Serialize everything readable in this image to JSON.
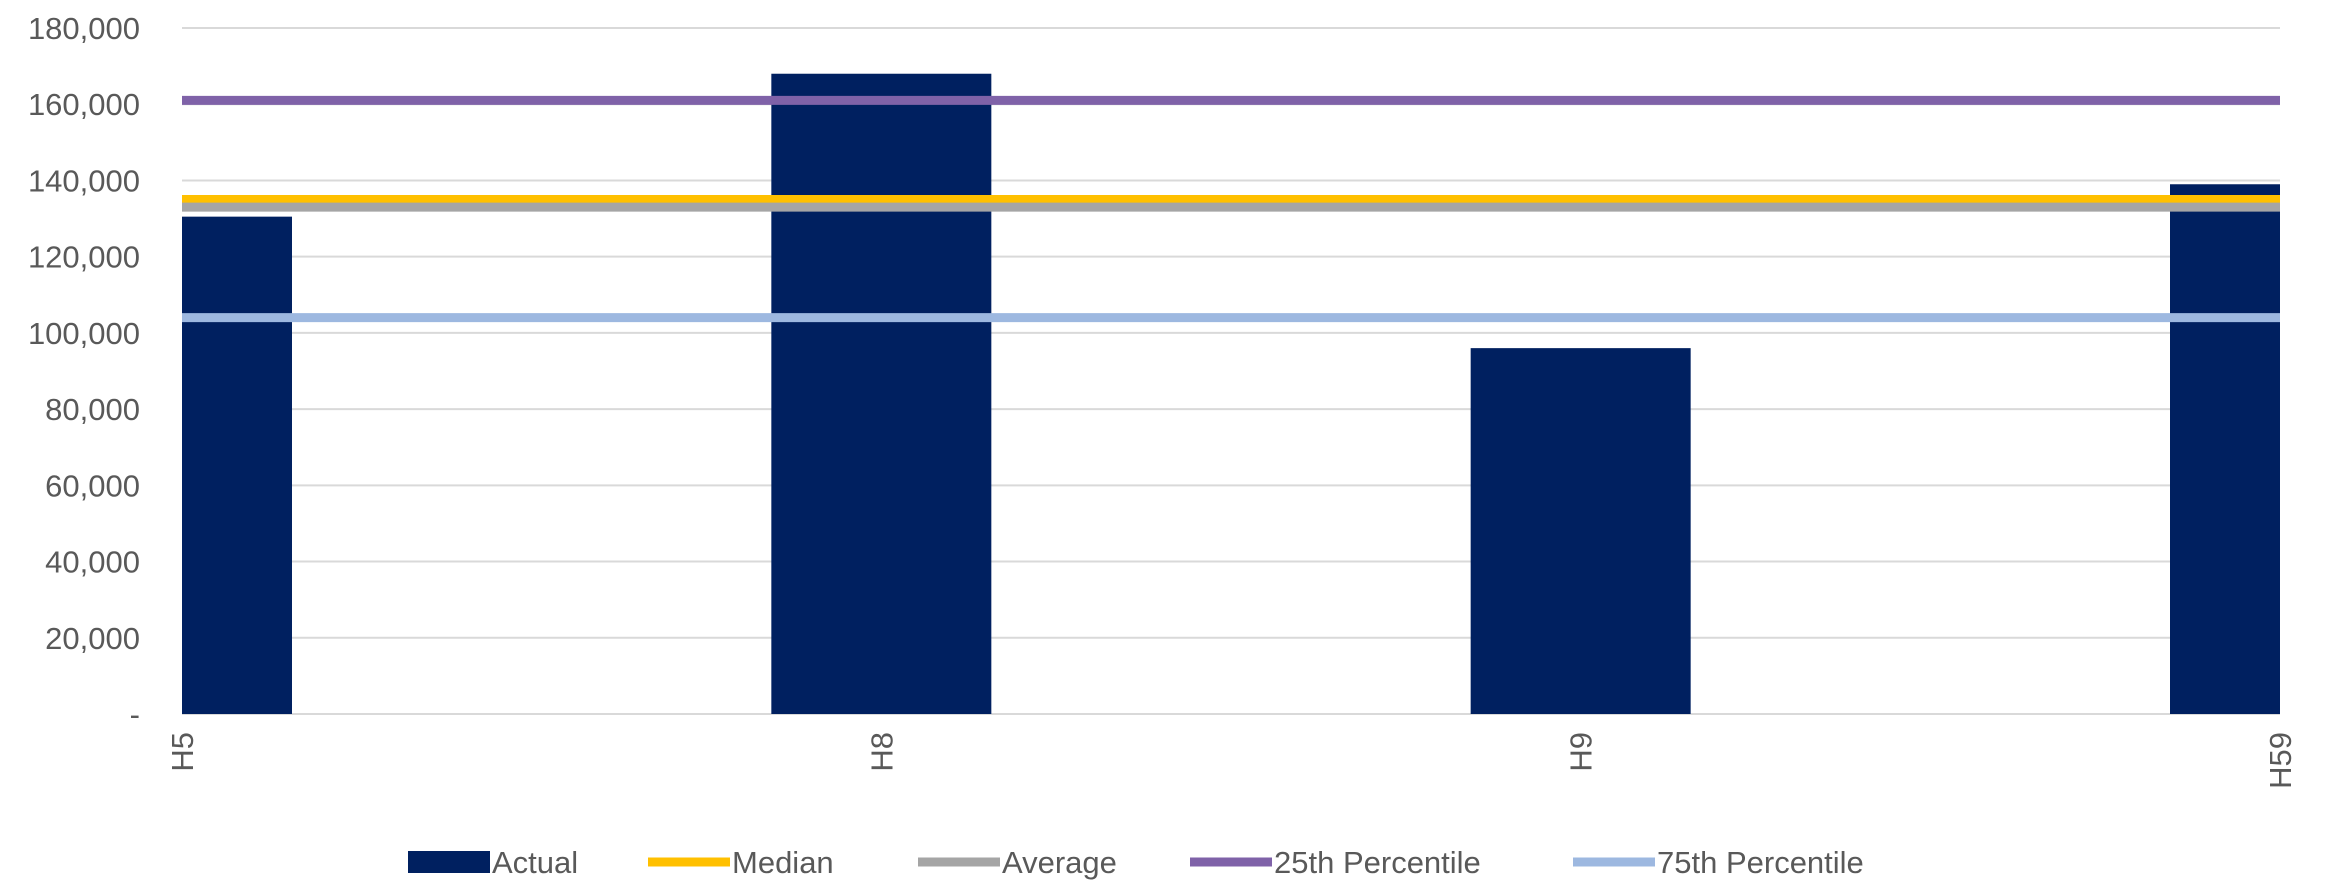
{
  "chart_data": {
    "type": "bar",
    "categories": [
      "H5",
      "H8",
      "H9",
      "H59"
    ],
    "series": [
      {
        "name": "Actual",
        "kind": "bar",
        "color": "#002060",
        "values": [
          130500,
          168000,
          96000,
          139000
        ]
      }
    ],
    "reference_lines": [
      {
        "name": "Median",
        "color": "#FFC000",
        "value": 135000
      },
      {
        "name": "Average",
        "color": "#A5A5A5",
        "value": 133000
      },
      {
        "name": "25th Percentile",
        "color": "#7F62A8",
        "value": 161000
      },
      {
        "name": "75th Percentile",
        "color": "#9DB8E0",
        "value": 104000
      }
    ],
    "yticks": [
      {
        "value": 0,
        "label": "-"
      },
      {
        "value": 20000,
        "label": "20,000"
      },
      {
        "value": 40000,
        "label": "40,000"
      },
      {
        "value": 60000,
        "label": "60,000"
      },
      {
        "value": 80000,
        "label": "80,000"
      },
      {
        "value": 100000,
        "label": "100,000"
      },
      {
        "value": 120000,
        "label": "120,000"
      },
      {
        "value": 140000,
        "label": "140,000"
      },
      {
        "value": 160000,
        "label": "160,000"
      },
      {
        "value": 180000,
        "label": "180,000"
      }
    ],
    "ylim": [
      0,
      180000
    ],
    "grid": true,
    "legend_position": "bottom",
    "title": "",
    "xlabel": "",
    "ylabel": ""
  }
}
